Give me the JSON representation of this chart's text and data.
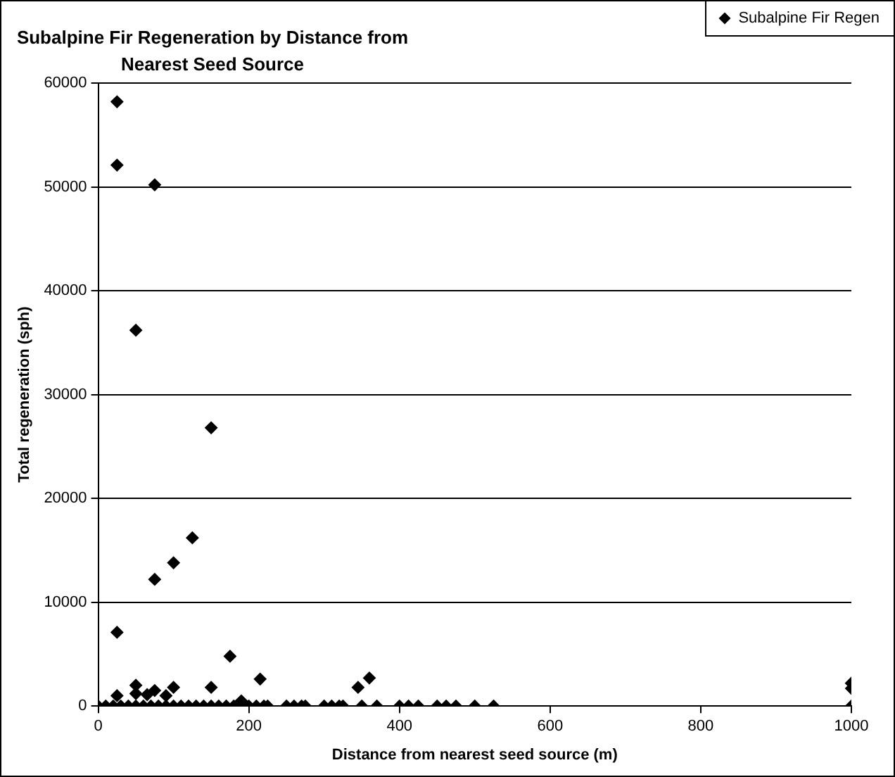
{
  "chart_data": {
    "type": "scatter",
    "title": "Subalpine Fir Regeneration by Distance from Nearest Seed Source",
    "xlabel": "Distance from nearest seed source (m)",
    "ylabel": "Total regeneration (sph)",
    "series": [
      {
        "name": "Subalpine Fir Regen",
        "color": "#000000",
        "x": [
          25,
          25,
          75,
          50,
          150,
          125,
          100,
          75,
          25,
          175,
          215,
          360,
          345,
          150,
          100,
          50,
          50,
          25,
          75,
          65,
          90,
          190,
          1000,
          1000,
          0,
          10,
          20,
          30,
          40,
          50,
          60,
          70,
          80,
          90,
          100,
          110,
          120,
          130,
          140,
          150,
          160,
          170,
          180,
          200,
          210,
          220,
          225,
          250,
          260,
          270,
          275,
          300,
          310,
          320,
          325,
          350,
          370,
          400,
          412,
          425,
          450,
          462,
          475,
          500,
          525,
          1000
        ],
        "values": [
          58200,
          52100,
          50200,
          36200,
          26800,
          16200,
          13800,
          12200,
          7100,
          4800,
          2600,
          2700,
          1800,
          1800,
          1800,
          2000,
          1200,
          1000,
          1500,
          1100,
          1000,
          500,
          2200,
          1700,
          0,
          0,
          0,
          0,
          0,
          0,
          0,
          0,
          0,
          0,
          0,
          0,
          0,
          0,
          0,
          0,
          0,
          0,
          0,
          0,
          0,
          0,
          0,
          0,
          0,
          0,
          0,
          0,
          0,
          0,
          0,
          0,
          0,
          0,
          0,
          0,
          0,
          0,
          0,
          0,
          0,
          0
        ]
      }
    ],
    "xlim": [
      0,
      1000
    ],
    "xticks": [
      0,
      200,
      400,
      600,
      800,
      1000
    ],
    "ylim": [
      0,
      60000
    ],
    "yticks": [
      0,
      10000,
      20000,
      30000,
      40000,
      50000,
      60000
    ],
    "grid": "y",
    "legend": "top right",
    "marker": "diamond"
  }
}
